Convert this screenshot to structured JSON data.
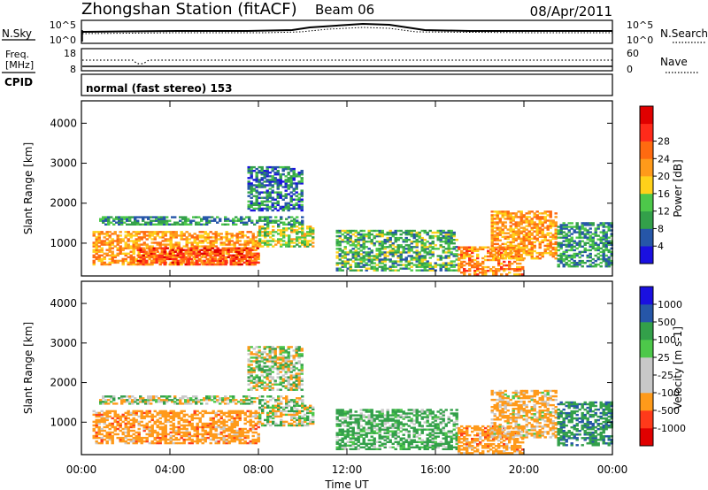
{
  "header": {
    "title": "Zhongshan Station (fitACF)",
    "beam": "Beam 06",
    "date": "08/Apr/2011"
  },
  "panels": {
    "nsky": {
      "label": "N.Sky",
      "left_ticks": [
        "10^5",
        "10^0"
      ],
      "right_ticks": [
        "10^5",
        "10^0"
      ],
      "right_label": "N.Search"
    },
    "freq": {
      "label_line1": "Freq.",
      "label_line2": "[MHz]",
      "left_ticks": [
        "18",
        "8"
      ],
      "right_ticks": [
        "60",
        "0"
      ],
      "right_label": "Nave"
    },
    "cpid": {
      "label": "CPID",
      "text": "normal (fast stereo) 153"
    }
  },
  "colors": {
    "power": [
      "#1a10e0",
      "#2656a8",
      "#33a04a",
      "#4dc84a",
      "#ffd11a",
      "#ff9a1a",
      "#ff6a10",
      "#ff2a1a",
      "#e00000"
    ],
    "velocity": [
      "#e00000",
      "#ff3a1a",
      "#ff9a1a",
      "#c8c8c8",
      "#c8c8c8",
      "#4dc84a",
      "#33a04a",
      "#2656a8",
      "#1a10e0"
    ]
  },
  "chart_data": [
    {
      "type": "heatmap",
      "title": "Power",
      "ylabel": "Slant Range [km]",
      "xlabel": "Time UT",
      "x_ticks": [
        "00:00",
        "04:00",
        "08:00",
        "12:00",
        "16:00",
        "20:00",
        "00:00"
      ],
      "xlim_hours": [
        0,
        24
      ],
      "y_ticks": [
        1000,
        2000,
        3000,
        4000
      ],
      "ylim": [
        180,
        4560
      ],
      "colorbar": {
        "label": "Power [dB]",
        "ticks": [
          "4",
          "8",
          "12",
          "16",
          "20",
          "24",
          "28"
        ]
      },
      "echo_regions": [
        {
          "t_start": 0.5,
          "t_end": 8.0,
          "r_min": 450,
          "r_max": 1300,
          "value": 22
        },
        {
          "t_start": 2.5,
          "t_end": 8.0,
          "r_min": 450,
          "r_max": 900,
          "value": 28
        },
        {
          "t_start": 0.8,
          "t_end": 10.0,
          "r_min": 1450,
          "r_max": 1650,
          "value": 10
        },
        {
          "t_start": 7.5,
          "t_end": 10.0,
          "r_min": 1800,
          "r_max": 2900,
          "value": 8
        },
        {
          "t_start": 8.0,
          "t_end": 10.5,
          "r_min": 900,
          "r_max": 1400,
          "value": 16
        },
        {
          "t_start": 11.5,
          "t_end": 17.0,
          "r_min": 300,
          "r_max": 1300,
          "value": 12
        },
        {
          "t_start": 17.0,
          "t_end": 20.0,
          "r_min": 200,
          "r_max": 900,
          "value": 24
        },
        {
          "t_start": 18.5,
          "t_end": 21.5,
          "r_min": 600,
          "r_max": 1800,
          "value": 22
        },
        {
          "t_start": 21.5,
          "t_end": 24.0,
          "r_min": 400,
          "r_max": 1500,
          "value": 10
        }
      ]
    },
    {
      "type": "heatmap",
      "title": "Velocity",
      "ylabel": "Slant Range [km]",
      "xlabel": "Time UT",
      "x_ticks": [
        "00:00",
        "04:00",
        "08:00",
        "12:00",
        "16:00",
        "20:00",
        "00:00"
      ],
      "xlim_hours": [
        0,
        24
      ],
      "y_ticks": [
        1000,
        2000,
        3000,
        4000
      ],
      "ylim": [
        180,
        4560
      ],
      "colorbar": {
        "label": "Velocity [m s-1]",
        "ticks": [
          "1000",
          "500",
          "100",
          "25",
          "-25",
          "-100",
          "-500",
          "-1000"
        ]
      },
      "echo_regions": [
        {
          "t_start": 0.5,
          "t_end": 8.0,
          "r_min": 450,
          "r_max": 1300,
          "value": -300
        },
        {
          "t_start": 0.8,
          "t_end": 10.0,
          "r_min": 1450,
          "r_max": 1650,
          "value": 0
        },
        {
          "t_start": 7.5,
          "t_end": 10.0,
          "r_min": 1800,
          "r_max": 2900,
          "value": 0
        },
        {
          "t_start": 8.0,
          "t_end": 10.5,
          "r_min": 900,
          "r_max": 1400,
          "value": 0
        },
        {
          "t_start": 11.5,
          "t_end": 17.0,
          "r_min": 300,
          "r_max": 1300,
          "value": 200
        },
        {
          "t_start": 17.0,
          "t_end": 20.0,
          "r_min": 200,
          "r_max": 900,
          "value": -300
        },
        {
          "t_start": 18.5,
          "t_end": 21.5,
          "r_min": 600,
          "r_max": 1800,
          "value": -200
        },
        {
          "t_start": 21.5,
          "t_end": 24.0,
          "r_min": 400,
          "r_max": 1500,
          "value": 400
        }
      ]
    }
  ]
}
